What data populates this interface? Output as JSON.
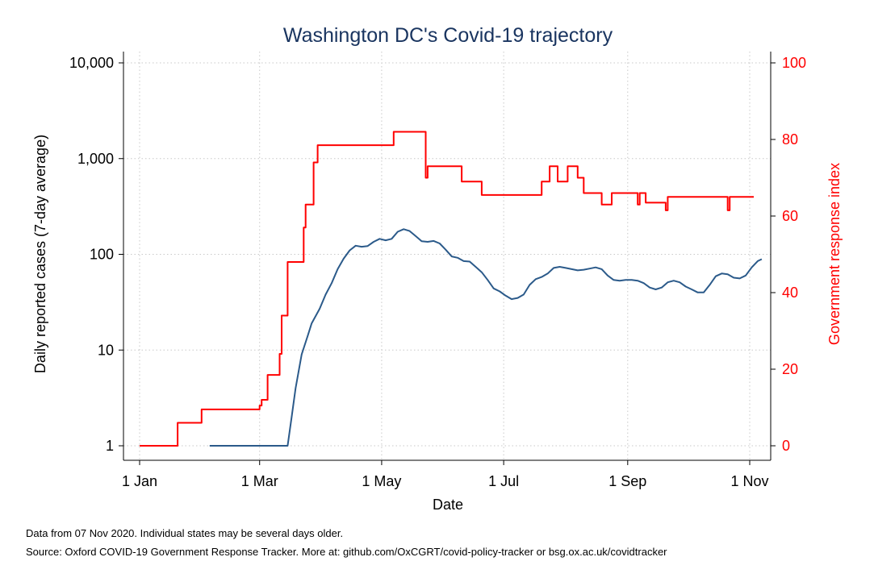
{
  "chart_data": {
    "type": "line",
    "title": "Washington DC's Covid-19 trajectory",
    "xlabel": "Date",
    "ylabel_left": "Daily reported cases (7-day average)",
    "ylabel_right": "Government response index",
    "x_ticks": [
      {
        "date": "2020-01-01",
        "label": "1 Jan"
      },
      {
        "date": "2020-03-01",
        "label": "1 Mar"
      },
      {
        "date": "2020-05-01",
        "label": "1 May"
      },
      {
        "date": "2020-07-01",
        "label": "1 Jul"
      },
      {
        "date": "2020-09-01",
        "label": "1 Sep"
      },
      {
        "date": "2020-11-01",
        "label": "1 Nov"
      }
    ],
    "xlim": [
      "2020-01-01",
      "2020-11-07"
    ],
    "y_left": {
      "scale": "log",
      "lim": [
        1,
        10000
      ],
      "ticks": [
        {
          "value": 1,
          "label": "1"
        },
        {
          "value": 10,
          "label": "10"
        },
        {
          "value": 100,
          "label": "100"
        },
        {
          "value": 1000,
          "label": "1,000"
        },
        {
          "value": 10000,
          "label": "10,000"
        }
      ]
    },
    "y_right": {
      "scale": "linear",
      "lim": [
        0,
        100
      ],
      "ticks": [
        {
          "value": 0,
          "label": "0"
        },
        {
          "value": 20,
          "label": "20"
        },
        {
          "value": 40,
          "label": "40"
        },
        {
          "value": 60,
          "label": "60"
        },
        {
          "value": 80,
          "label": "80"
        },
        {
          "value": 100,
          "label": "100"
        }
      ]
    },
    "grid": true,
    "series": [
      {
        "axis": "left",
        "color": "#2b5a8a",
        "points": [
          [
            "2020-02-05",
            1
          ],
          [
            "2020-03-15",
            1
          ],
          [
            "2020-03-17",
            2
          ],
          [
            "2020-03-19",
            4
          ],
          [
            "2020-03-22",
            9
          ],
          [
            "2020-03-25",
            14
          ],
          [
            "2020-03-27",
            19
          ],
          [
            "2020-03-31",
            27
          ],
          [
            "2020-04-03",
            38
          ],
          [
            "2020-04-06",
            50
          ],
          [
            "2020-04-09",
            70
          ],
          [
            "2020-04-12",
            90
          ],
          [
            "2020-04-15",
            110
          ],
          [
            "2020-04-18",
            123
          ],
          [
            "2020-04-21",
            120
          ],
          [
            "2020-04-24",
            122
          ],
          [
            "2020-04-27",
            135
          ],
          [
            "2020-04-30",
            145
          ],
          [
            "2020-05-03",
            140
          ],
          [
            "2020-05-06",
            145
          ],
          [
            "2020-05-09",
            172
          ],
          [
            "2020-05-12",
            183
          ],
          [
            "2020-05-15",
            175
          ],
          [
            "2020-05-18",
            155
          ],
          [
            "2020-05-21",
            137
          ],
          [
            "2020-05-24",
            135
          ],
          [
            "2020-05-27",
            138
          ],
          [
            "2020-05-30",
            130
          ],
          [
            "2020-06-02",
            112
          ],
          [
            "2020-06-05",
            95
          ],
          [
            "2020-06-08",
            92
          ],
          [
            "2020-06-11",
            85
          ],
          [
            "2020-06-14",
            84
          ],
          [
            "2020-06-17",
            74
          ],
          [
            "2020-06-20",
            65
          ],
          [
            "2020-06-23",
            54
          ],
          [
            "2020-06-26",
            44
          ],
          [
            "2020-06-29",
            41
          ],
          [
            "2020-07-02",
            37
          ],
          [
            "2020-07-05",
            34
          ],
          [
            "2020-07-08",
            35
          ],
          [
            "2020-07-11",
            38
          ],
          [
            "2020-07-14",
            48
          ],
          [
            "2020-07-17",
            55
          ],
          [
            "2020-07-20",
            58
          ],
          [
            "2020-07-23",
            63
          ],
          [
            "2020-07-26",
            72
          ],
          [
            "2020-07-29",
            74
          ],
          [
            "2020-08-01",
            72
          ],
          [
            "2020-08-04",
            70
          ],
          [
            "2020-08-07",
            68
          ],
          [
            "2020-08-10",
            69
          ],
          [
            "2020-08-13",
            71
          ],
          [
            "2020-08-16",
            73
          ],
          [
            "2020-08-19",
            70
          ],
          [
            "2020-08-22",
            60
          ],
          [
            "2020-08-25",
            54
          ],
          [
            "2020-08-28",
            53
          ],
          [
            "2020-08-31",
            54
          ],
          [
            "2020-09-03",
            54
          ],
          [
            "2020-09-06",
            53
          ],
          [
            "2020-09-09",
            50
          ],
          [
            "2020-09-12",
            45
          ],
          [
            "2020-09-15",
            43
          ],
          [
            "2020-09-18",
            45
          ],
          [
            "2020-09-21",
            51
          ],
          [
            "2020-09-24",
            53
          ],
          [
            "2020-09-27",
            51
          ],
          [
            "2020-09-30",
            46
          ],
          [
            "2020-10-03",
            43
          ],
          [
            "2020-10-06",
            40
          ],
          [
            "2020-10-09",
            40
          ],
          [
            "2020-10-12",
            48
          ],
          [
            "2020-10-15",
            59
          ],
          [
            "2020-10-18",
            63
          ],
          [
            "2020-10-21",
            62
          ],
          [
            "2020-10-24",
            57
          ],
          [
            "2020-10-27",
            56
          ],
          [
            "2020-10-30",
            60
          ],
          [
            "2020-11-02",
            73
          ],
          [
            "2020-11-05",
            85
          ],
          [
            "2020-11-07",
            89
          ]
        ]
      },
      {
        "axis": "right",
        "color": "#ff0000",
        "step": true,
        "points": [
          [
            "2020-01-01",
            0
          ],
          [
            "2020-01-20",
            6
          ],
          [
            "2020-02-01",
            9.5
          ],
          [
            "2020-03-01",
            10.5
          ],
          [
            "2020-03-02",
            12
          ],
          [
            "2020-03-05",
            18.5
          ],
          [
            "2020-03-11",
            24
          ],
          [
            "2020-03-12",
            34
          ],
          [
            "2020-03-15",
            48
          ],
          [
            "2020-03-23",
            57
          ],
          [
            "2020-03-24",
            63
          ],
          [
            "2020-03-28",
            74
          ],
          [
            "2020-03-30",
            78.5
          ],
          [
            "2020-05-07",
            82
          ],
          [
            "2020-05-23",
            70
          ],
          [
            "2020-05-24",
            73
          ],
          [
            "2020-06-10",
            69
          ],
          [
            "2020-06-20",
            65.5
          ],
          [
            "2020-07-20",
            69
          ],
          [
            "2020-07-24",
            73
          ],
          [
            "2020-07-28",
            69
          ],
          [
            "2020-08-02",
            73
          ],
          [
            "2020-08-07",
            70
          ],
          [
            "2020-08-10",
            66
          ],
          [
            "2020-08-19",
            63
          ],
          [
            "2020-08-24",
            66
          ],
          [
            "2020-09-06",
            63
          ],
          [
            "2020-09-07",
            66
          ],
          [
            "2020-09-10",
            63.5
          ],
          [
            "2020-09-20",
            61.5
          ],
          [
            "2020-09-21",
            65
          ],
          [
            "2020-10-21",
            61.5
          ],
          [
            "2020-10-22",
            65
          ],
          [
            "2020-11-03",
            65
          ]
        ]
      }
    ]
  },
  "footnotes": [
    "Data from 07 Nov 2020. Individual states may be several days older.",
    "Source: Oxford COVID-19 Government Response Tracker. More at: github.com/OxCGRT/covid-policy-tracker or bsg.ox.ac.uk/covidtracker"
  ]
}
